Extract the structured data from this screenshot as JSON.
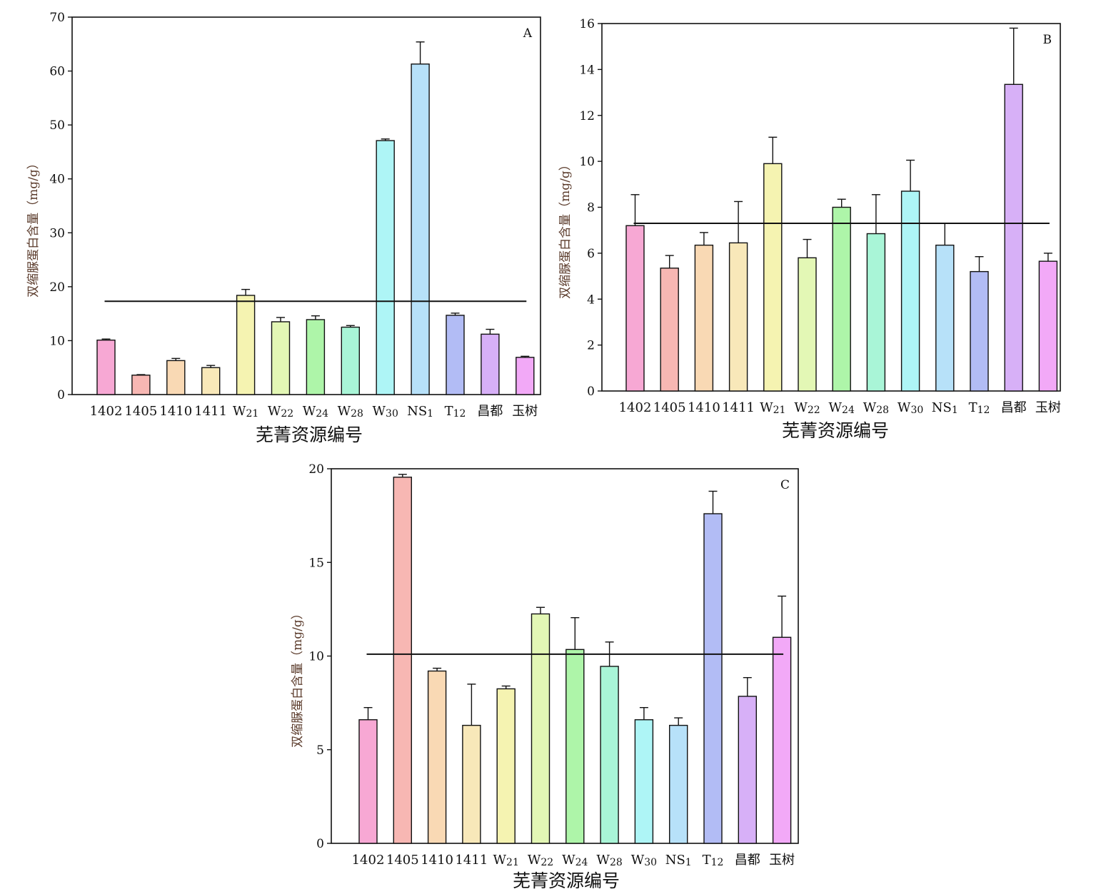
{
  "xlabel": "芜菁资源编号",
  "ylabel": "双缩脲蛋白含量（mg/g）",
  "chart_data": [
    {
      "type": "bar",
      "panel_label": "A",
      "categories": [
        "1402",
        "1405",
        "1410",
        "1411",
        "W21",
        "W22",
        "W24",
        "W28",
        "W30",
        "NS1",
        "T12",
        "昌都",
        "玉树"
      ],
      "values": [
        10.1,
        3.6,
        6.3,
        5.0,
        18.4,
        13.5,
        13.9,
        12.5,
        47.1,
        61.3,
        14.7,
        11.2,
        6.9
      ],
      "errors": [
        0.2,
        0.1,
        0.4,
        0.4,
        1.1,
        0.8,
        0.7,
        0.3,
        0.3,
        4.1,
        0.4,
        0.9,
        0.2
      ],
      "reference_line": 17.3,
      "xlabel": "芜菁资源编号",
      "ylabel": "双缩脲蛋白含量（mg/g）",
      "ylim": [
        0,
        70
      ],
      "yticks": [
        0,
        10,
        20,
        30,
        40,
        50,
        60,
        70
      ]
    },
    {
      "type": "bar",
      "panel_label": "B",
      "categories": [
        "1402",
        "1405",
        "1410",
        "1411",
        "W21",
        "W22",
        "W24",
        "W28",
        "W30",
        "NS1",
        "T12",
        "昌都",
        "玉树"
      ],
      "values": [
        7.2,
        5.35,
        6.35,
        6.45,
        9.9,
        5.8,
        8.0,
        6.85,
        8.7,
        6.35,
        5.2,
        13.35,
        5.65
      ],
      "errors": [
        1.35,
        0.55,
        0.55,
        1.8,
        1.15,
        0.8,
        0.35,
        1.7,
        1.35,
        0.95,
        0.65,
        2.45,
        0.35
      ],
      "reference_line": 7.3,
      "xlabel": "芜菁资源编号",
      "ylabel": "双缩脲蛋白含量（mg/g）",
      "ylim": [
        0,
        16
      ],
      "yticks": [
        0,
        2,
        4,
        6,
        8,
        10,
        12,
        14,
        16
      ]
    },
    {
      "type": "bar",
      "panel_label": "C",
      "categories": [
        "1402",
        "1405",
        "1410",
        "1411",
        "W21",
        "W22",
        "W24",
        "W28",
        "W30",
        "NS1",
        "T12",
        "昌都",
        "玉树"
      ],
      "values": [
        6.6,
        19.55,
        9.2,
        6.3,
        8.25,
        12.25,
        10.35,
        9.45,
        6.6,
        6.3,
        17.6,
        7.85,
        11.0
      ],
      "errors": [
        0.65,
        0.15,
        0.15,
        2.2,
        0.15,
        0.35,
        1.7,
        1.3,
        0.65,
        0.4,
        1.2,
        1.0,
        2.2
      ],
      "reference_line": 10.1,
      "xlabel": "芜菁资源编号",
      "ylabel": "双缩脲蛋白含量（mg/g）",
      "ylim": [
        0,
        20
      ],
      "yticks": [
        0,
        5,
        10,
        15,
        20
      ]
    }
  ],
  "colors": {
    "fills": [
      "#f7a8d4",
      "#f7b7b3",
      "#f9d9b4",
      "#f8e8b9",
      "#f5f3b1",
      "#e3f7b5",
      "#aef5a9",
      "#a9f5d7",
      "#aef5f6",
      "#b7e1f9",
      "#b2bcf5",
      "#d7b0f7",
      "#f2a9f7"
    ],
    "strokes": [
      "#111111"
    ]
  }
}
